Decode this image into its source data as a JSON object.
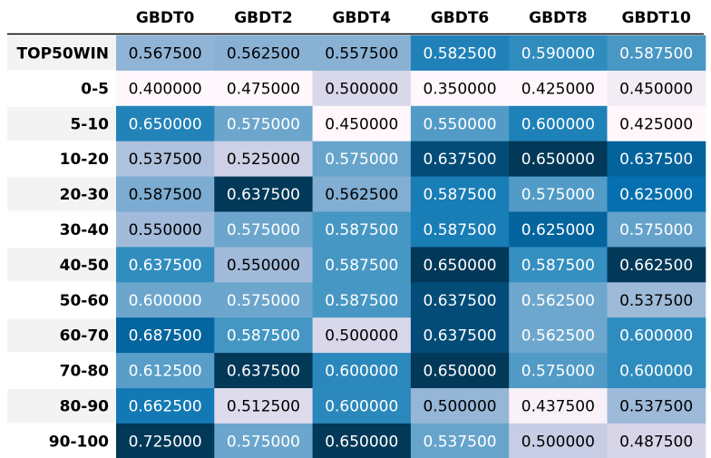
{
  "chart_data": {
    "type": "heatmap",
    "columns": [
      "GBDT0",
      "GBDT2",
      "GBDT4",
      "GBDT6",
      "GBDT8",
      "GBDT10"
    ],
    "rows": [
      "TOP50WIN",
      "0-5",
      "5-10",
      "10-20",
      "20-30",
      "30-40",
      "40-50",
      "50-60",
      "60-70",
      "70-80",
      "80-90",
      "90-100"
    ],
    "values": [
      [
        0.5675,
        0.5625,
        0.5575,
        0.5825,
        0.59,
        0.5875
      ],
      [
        0.4,
        0.475,
        0.5,
        0.35,
        0.425,
        0.45
      ],
      [
        0.65,
        0.575,
        0.45,
        0.55,
        0.6,
        0.425
      ],
      [
        0.5375,
        0.525,
        0.575,
        0.6375,
        0.65,
        0.6375
      ],
      [
        0.5875,
        0.6375,
        0.5625,
        0.5875,
        0.575,
        0.625
      ],
      [
        0.55,
        0.575,
        0.5875,
        0.5875,
        0.625,
        0.575
      ],
      [
        0.6375,
        0.55,
        0.5875,
        0.65,
        0.5875,
        0.6625
      ],
      [
        0.6,
        0.575,
        0.5875,
        0.6375,
        0.5625,
        0.5375
      ],
      [
        0.6875,
        0.5875,
        0.5,
        0.6375,
        0.5625,
        0.6
      ],
      [
        0.6125,
        0.6375,
        0.6,
        0.65,
        0.575,
        0.6
      ],
      [
        0.6625,
        0.5125,
        0.6,
        0.5,
        0.4375,
        0.5375
      ],
      [
        0.725,
        0.575,
        0.65,
        0.5375,
        0.5,
        0.4875
      ]
    ],
    "cell_labels": [
      [
        "0.567500",
        "0.562500",
        "0.557500",
        "0.582500",
        "0.590000",
        "0.587500"
      ],
      [
        "0.400000",
        "0.475000",
        "0.500000",
        "0.350000",
        "0.425000",
        "0.450000"
      ],
      [
        "0.650000",
        "0.575000",
        "0.450000",
        "0.550000",
        "0.600000",
        "0.425000"
      ],
      [
        "0.537500",
        "0.525000",
        "0.575000",
        "0.637500",
        "0.650000",
        "0.637500"
      ],
      [
        "0.587500",
        "0.637500",
        "0.562500",
        "0.587500",
        "0.575000",
        "0.625000"
      ],
      [
        "0.550000",
        "0.575000",
        "0.587500",
        "0.587500",
        "0.625000",
        "0.575000"
      ],
      [
        "0.637500",
        "0.550000",
        "0.587500",
        "0.650000",
        "0.587500",
        "0.662500"
      ],
      [
        "0.600000",
        "0.575000",
        "0.587500",
        "0.637500",
        "0.562500",
        "0.537500"
      ],
      [
        "0.687500",
        "0.587500",
        "0.500000",
        "0.637500",
        "0.562500",
        "0.600000"
      ],
      [
        "0.612500",
        "0.637500",
        "0.600000",
        "0.650000",
        "0.575000",
        "0.600000"
      ],
      [
        "0.662500",
        "0.512500",
        "0.600000",
        "0.500000",
        "0.437500",
        "0.537500"
      ],
      [
        "0.725000",
        "0.575000",
        "0.650000",
        "0.537500",
        "0.500000",
        "0.487500"
      ]
    ],
    "colormap": "PuBu",
    "color_scaling": "per-column",
    "colors": {
      "light": "#fff7fb",
      "mid_light": "#d0d1e6",
      "mid": "#74a9cf",
      "dark_mid": "#0570b0",
      "dark": "#023858",
      "row_band": "#f3f3f3"
    }
  }
}
